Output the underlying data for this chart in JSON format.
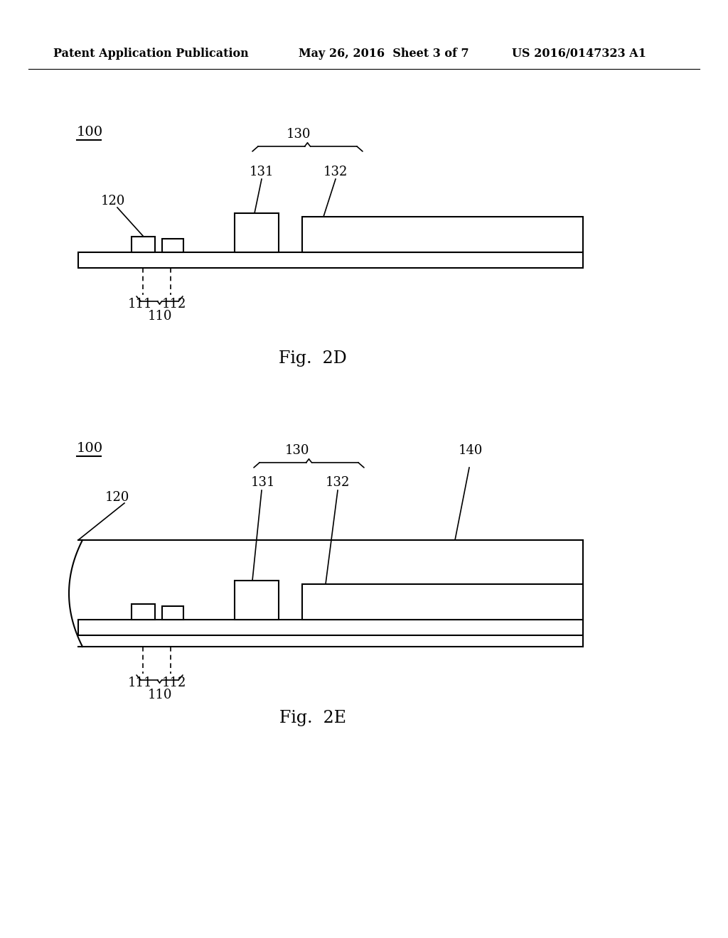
{
  "bg_color": "#ffffff",
  "header_left": "Patent Application Publication",
  "header_center": "May 26, 2016  Sheet 3 of 7",
  "header_right": "US 2016/0147323 A1",
  "fig_label_2D": "Fig.  2D",
  "fig_label_2E": "Fig.  2E",
  "label_100": "100",
  "label_110": "110",
  "label_111": "111",
  "label_112": "112",
  "label_120": "120",
  "label_130": "130",
  "label_131": "131",
  "label_132": "132",
  "label_140": "140"
}
